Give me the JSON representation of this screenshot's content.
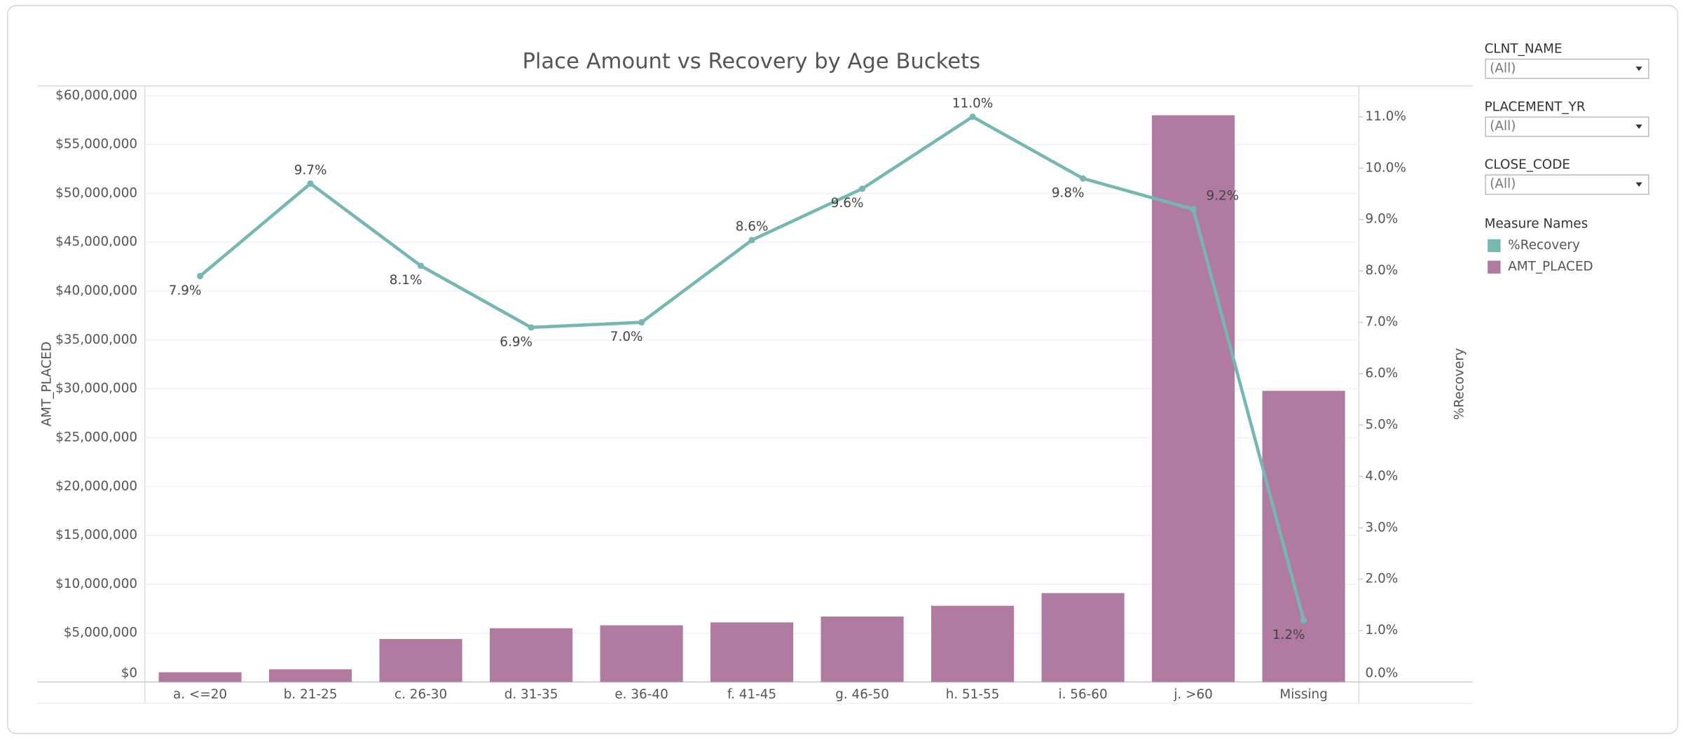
{
  "chart_data": {
    "type": "bar_line",
    "title": "Place Amount vs Recovery by Age Buckets",
    "y_label": "AMT_PLACED",
    "y2_label": "%Recovery",
    "legend_title": "Measure Names",
    "categories": [
      "a. <=20",
      "b. 21-25",
      "c. 26-30",
      "d. 31-35",
      "e. 36-40",
      "f. 41-45",
      "g. 46-50",
      "h. 51-55",
      "i. 56-60",
      "j. >60",
      "Missing"
    ],
    "series": [
      {
        "name": "%Recovery",
        "color": "#76b7b2",
        "type": "line",
        "axis": "y2",
        "values": [
          7.9,
          9.7,
          8.1,
          6.9,
          7.0,
          8.6,
          9.6,
          11.0,
          9.8,
          9.2,
          1.2
        ],
        "value_labels": [
          "7.9%",
          "9.7%",
          "8.1%",
          "6.9%",
          "7.0%",
          "8.6%",
          "9.6%",
          "11.0%",
          "9.8%",
          "9.2%",
          "1.2%"
        ]
      },
      {
        "name": "AMT_PLACED",
        "color": "#b07aa1",
        "type": "bar",
        "values": [
          1000000,
          1300000,
          4400000,
          5500000,
          5800000,
          6100000,
          6700000,
          7800000,
          9100000,
          58000000,
          29800000
        ]
      }
    ],
    "ylim": [
      0,
      61000000
    ],
    "yticks": [
      {
        "value": 0,
        "label": "$0"
      },
      {
        "value": 5000000,
        "label": "$5,000,000"
      },
      {
        "value": 10000000,
        "label": "$10,000,000"
      },
      {
        "value": 15000000,
        "label": "$15,000,000"
      },
      {
        "value": 20000000,
        "label": "$20,000,000"
      },
      {
        "value": 25000000,
        "label": "$25,000,000"
      },
      {
        "value": 30000000,
        "label": "$30,000,000"
      },
      {
        "value": 35000000,
        "label": "$35,000,000"
      },
      {
        "value": 40000000,
        "label": "$40,000,000"
      },
      {
        "value": 45000000,
        "label": "$45,000,000"
      },
      {
        "value": 50000000,
        "label": "$50,000,000"
      },
      {
        "value": 55000000,
        "label": "$55,000,000"
      },
      {
        "value": 60000000,
        "label": "$60,000,000"
      }
    ],
    "y2lim": [
      0,
      11.6
    ],
    "y2ticks": [
      {
        "value": 0,
        "label": "0.0%"
      },
      {
        "value": 1,
        "label": "1.0%"
      },
      {
        "value": 2,
        "label": "2.0%"
      },
      {
        "value": 3,
        "label": "3.0%"
      },
      {
        "value": 4,
        "label": "4.0%"
      },
      {
        "value": 5,
        "label": "5.0%"
      },
      {
        "value": 6,
        "label": "6.0%"
      },
      {
        "value": 7,
        "label": "7.0%"
      },
      {
        "value": 8,
        "label": "8.0%"
      },
      {
        "value": 9,
        "label": "9.0%"
      },
      {
        "value": 10,
        "label": "10.0%"
      },
      {
        "value": 11,
        "label": "11.0%"
      }
    ],
    "grid": true
  },
  "filters": [
    {
      "label": "CLNT_NAME",
      "value": "(All)"
    },
    {
      "label": "PLACEMENT_YR",
      "value": "(All)"
    },
    {
      "label": "CLOSE_CODE",
      "value": "(All)"
    }
  ]
}
